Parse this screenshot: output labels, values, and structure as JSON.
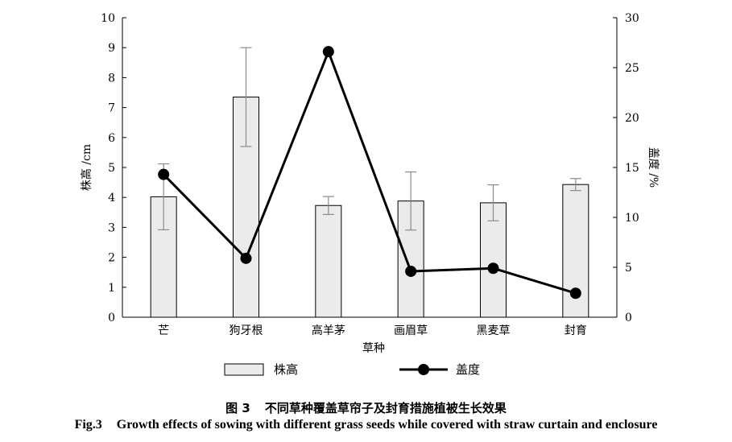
{
  "chart_data": {
    "type": "bar+line",
    "categories": [
      "芒",
      "狗牙根",
      "高羊茅",
      "画眉草",
      "黑麦草",
      "封育"
    ],
    "xlabel": "草种",
    "ylabel_left": "株高 /cm",
    "ylabel_right": "盖度 /%",
    "ylim_left": [
      0,
      10
    ],
    "ylim_right": [
      0,
      30
    ],
    "yticks_left": [
      "0",
      "1",
      "2",
      "3",
      "4",
      "5",
      "6",
      "7",
      "8",
      "9",
      "10"
    ],
    "yticks_right": [
      "0",
      "5",
      "10",
      "15",
      "20",
      "25",
      "30"
    ],
    "series": [
      {
        "name": "株高",
        "kind": "bar",
        "axis": "left",
        "values": [
          4.02,
          7.35,
          3.73,
          3.88,
          3.82,
          4.43
        ],
        "error": [
          1.1,
          1.65,
          0.3,
          0.97,
          0.6,
          0.2
        ],
        "color": "#ebebeb"
      },
      {
        "name": "盖度",
        "kind": "line",
        "axis": "right",
        "values": [
          14.3,
          5.9,
          26.6,
          4.6,
          4.9,
          2.4
        ],
        "color": "#000000"
      }
    ],
    "grid": false,
    "legend_placement": "bottom"
  },
  "caption": {
    "cn_number": "图 3",
    "cn_text": "不同草种覆盖草帘子及封育措施植被生长效果",
    "en_number": "Fig.3",
    "en_text": "Growth effects of sowing with different grass seeds while covered with straw curtain and enclosure"
  }
}
